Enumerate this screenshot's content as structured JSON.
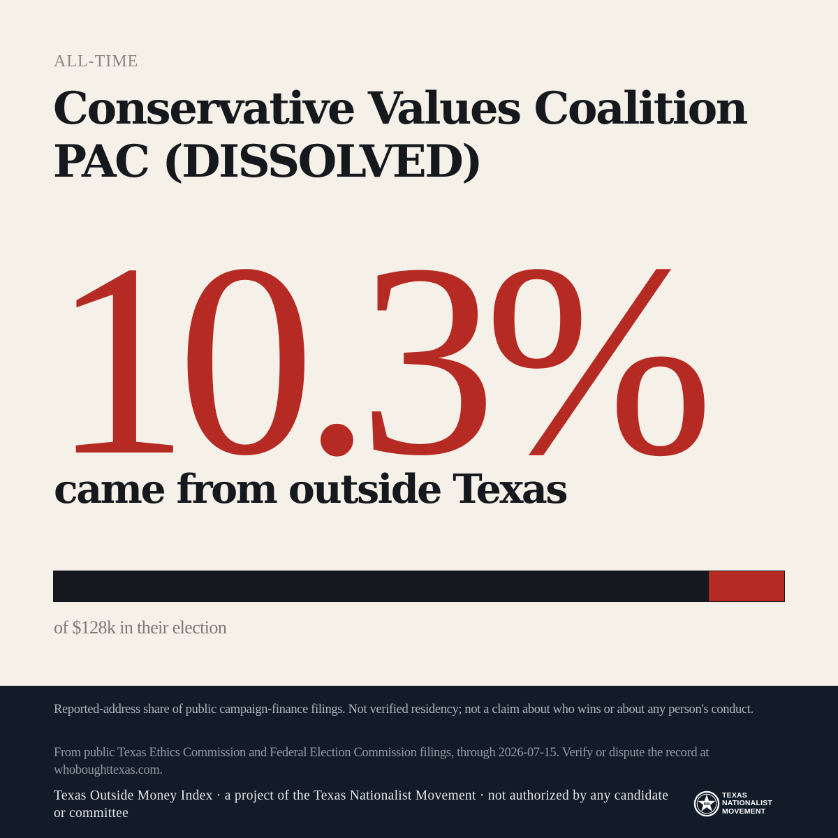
{
  "eyebrow": "ALL-TIME",
  "title": "Conservative Values Coalition PAC (DISSOLVED)",
  "stat": {
    "value": "10.3%",
    "outside_share": 10.3,
    "caption": "came from outside Texas"
  },
  "bar": {
    "total_caption": "of $128k in their election"
  },
  "footer": {
    "disclaimer": "Reported-address share of public campaign-finance filings. Not verified residency; not a claim about who wins or about any person's conduct.",
    "source": "From public Texas Ethics Commission and Federal Election Commission filings, through 2026-07-15. Verify or dispute the record at whoboughttexas.com.",
    "credit": "Texas Outside Money Index · a project of the Texas Nationalist Movement · not authorized by any candidate or committee",
    "logo": {
      "icon": "star-seal-icon",
      "line1": "TEXAS",
      "line2": "NATIONALIST",
      "line3": "MOVEMENT"
    }
  },
  "colors": {
    "background": "#f5f0e8",
    "accent": "#b52a22",
    "ink": "#15181d",
    "footer": "#121c29"
  }
}
